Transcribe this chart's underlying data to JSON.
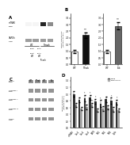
{
  "panel_B_left": {
    "categories": [
      "WT",
      "TTrak"
    ],
    "values": [
      1.0,
      2.2
    ],
    "errors": [
      0.12,
      0.22
    ],
    "colors": [
      "#ffffff",
      "#111111"
    ],
    "sig": "**"
  },
  "panel_B_right": {
    "categories": [
      "WT",
      "Tsk"
    ],
    "values": [
      1.0,
      2.9
    ],
    "errors": [
      0.12,
      0.28
    ],
    "colors": [
      "#ffffff",
      "#666666"
    ],
    "sig": "**"
  },
  "panel_D": {
    "categories": [
      "mTRAK",
      "Cox1",
      "Cox2",
      "Cox3",
      "ATP6",
      "ND1",
      "ND2",
      "ND4",
      "Cytb"
    ],
    "TTrak": [
      1.0,
      0.82,
      0.88,
      0.9,
      0.78,
      0.72,
      0.85,
      0.8,
      0.76
    ],
    "Tventricular": [
      0.68,
      0.58,
      0.62,
      0.68,
      0.52,
      0.58,
      0.6,
      0.55,
      0.52
    ],
    "TTrak_errors": [
      0.08,
      0.07,
      0.09,
      0.08,
      0.07,
      0.1,
      0.08,
      0.09,
      0.07
    ],
    "Tventricular_errors": [
      0.06,
      0.05,
      0.07,
      0.06,
      0.05,
      0.07,
      0.06,
      0.07,
      0.05
    ],
    "TTrak_color": "#333333",
    "Tventricular_color": "#aaaaaa",
    "sig_TTrak": [
      false,
      false,
      true,
      true,
      true,
      true,
      false,
      true,
      true
    ],
    "sig_Tventricular": [
      false,
      false,
      false,
      true,
      false,
      false,
      false,
      false,
      false
    ]
  },
  "bg_color": "#ffffff"
}
